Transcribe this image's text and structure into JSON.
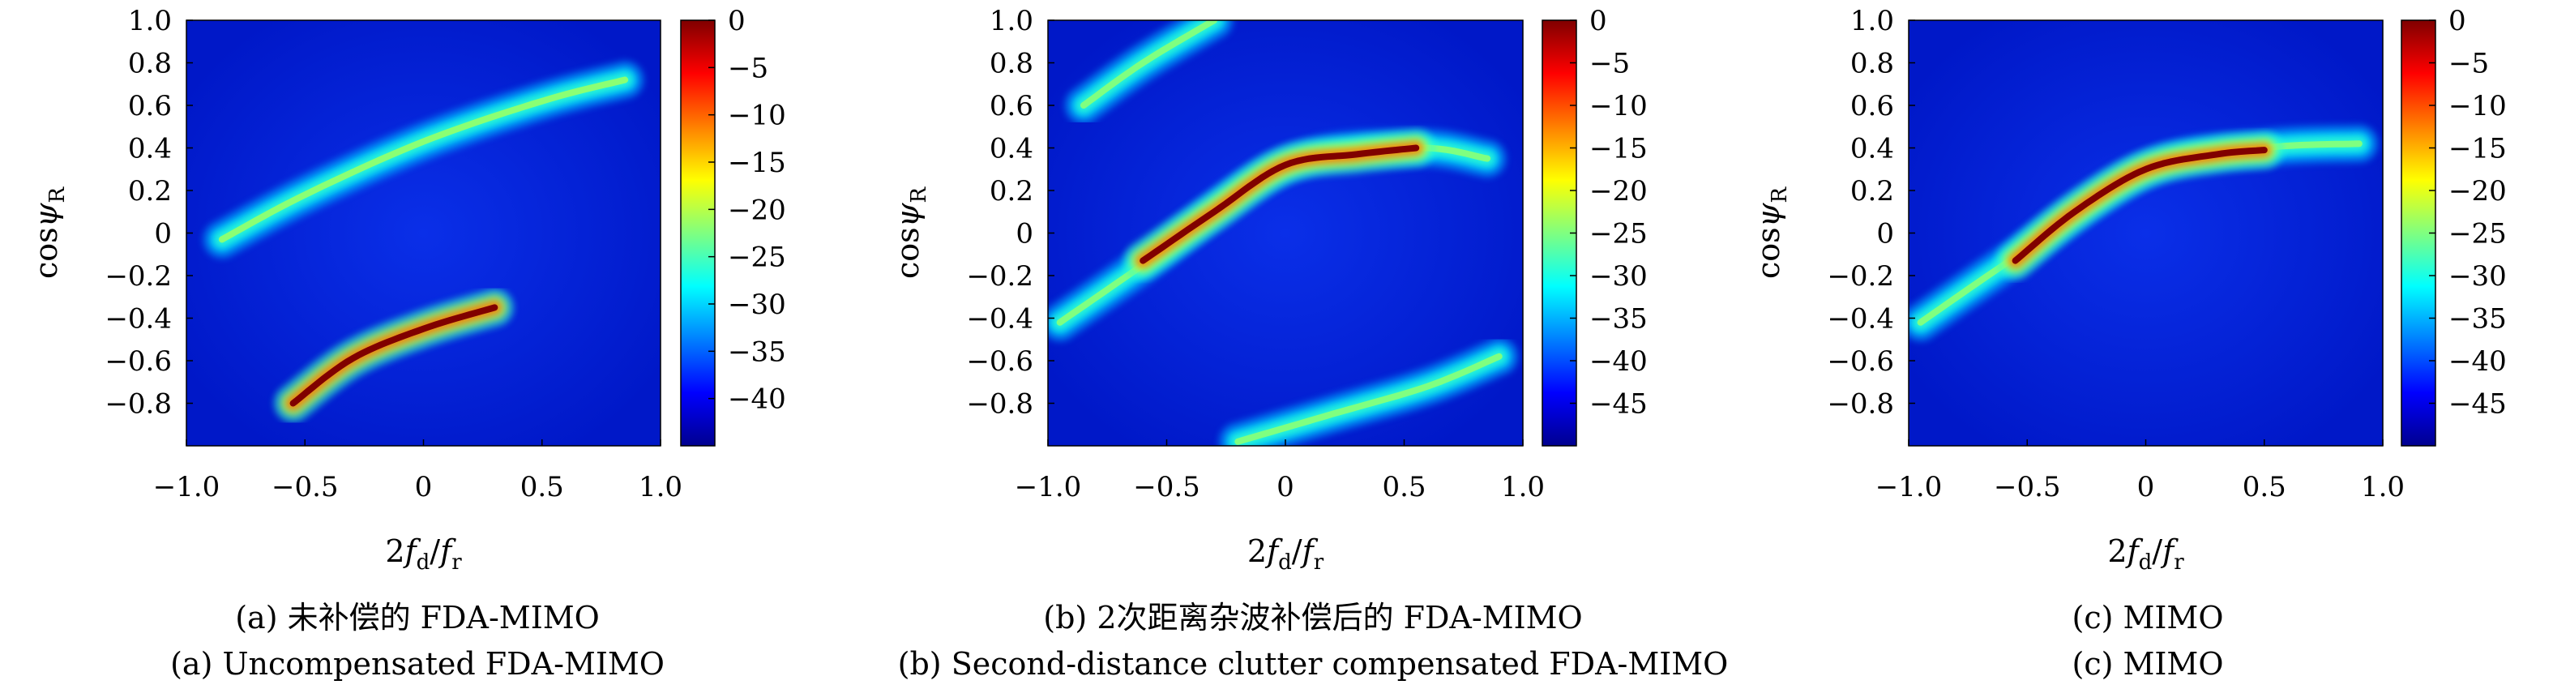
{
  "chart_data": [
    {
      "type": "heatmap",
      "caption_cn": "(a) 未补偿的 FDA-MIMO",
      "caption_en": "(a) Uncompensated FDA-MIMO",
      "xlabel": "2f_d/f_r",
      "ylabel": "cosψ_R",
      "xlim": [
        -1.0,
        1.0
      ],
      "ylim": [
        -1.0,
        1.0
      ],
      "xticks": [
        "-1.0",
        "-0.5",
        "0",
        "0.5",
        "1.0"
      ],
      "yticks": [
        "1.0",
        "0.8",
        "0.6",
        "0.4",
        "0.2",
        "0",
        "-0.2",
        "-0.4",
        "-0.6",
        "-0.8"
      ],
      "colorbar": {
        "min": -45,
        "max": 0,
        "ticks": [
          "0",
          "-5",
          "-10",
          "-15",
          "-20",
          "-25",
          "-30",
          "-35",
          "-40"
        ]
      },
      "colormap": "jet",
      "ridges": [
        {
          "x": [
            -0.85,
            -0.5,
            0,
            0.5,
            0.85
          ],
          "y": [
            -0.03,
            0.18,
            0.43,
            0.62,
            0.72
          ],
          "peak_db": -22
        },
        {
          "x": [
            -0.55,
            -0.3,
            0,
            0.3
          ],
          "y": [
            -0.8,
            -0.59,
            -0.45,
            -0.35
          ],
          "peak_db": 0
        }
      ]
    },
    {
      "type": "heatmap",
      "caption_cn": "(b) 2次距离杂波补偿后的 FDA-MIMO",
      "caption_en": "(b) Second-distance clutter compensated FDA-MIMO",
      "xlabel": "2f_d/f_r",
      "ylabel": "cosψ_R",
      "xlim": [
        -1.0,
        1.0
      ],
      "ylim": [
        -1.0,
        1.0
      ],
      "xticks": [
        "-1.0",
        "-0.5",
        "0",
        "0.5",
        "1.0"
      ],
      "yticks": [
        "1.0",
        "0.8",
        "0.6",
        "0.4",
        "0.2",
        "0",
        "-0.2",
        "-0.4",
        "-0.6",
        "-0.8"
      ],
      "colorbar": {
        "min": -50,
        "max": 0,
        "ticks": [
          "0",
          "-5",
          "-10",
          "-15",
          "-20",
          "-25",
          "-30",
          "-35",
          "-40",
          "-45"
        ]
      },
      "colormap": "jet",
      "ridges": [
        {
          "x": [
            -0.95,
            -0.6,
            0,
            0.55,
            0.85
          ],
          "y": [
            -0.42,
            -0.15,
            0.32,
            0.4,
            0.35
          ],
          "peak_db": -28
        },
        {
          "x": [
            -0.6,
            -0.3,
            0,
            0.3,
            0.55
          ],
          "y": [
            -0.13,
            0.1,
            0.32,
            0.37,
            0.4
          ],
          "peak_db": 0
        },
        {
          "x": [
            -0.85,
            -0.6,
            -0.3
          ],
          "y": [
            0.6,
            0.8,
            1.0
          ],
          "peak_db": -25
        },
        {
          "x": [
            -0.2,
            0.2,
            0.6,
            0.9
          ],
          "y": [
            -0.98,
            -0.85,
            -0.72,
            -0.58
          ],
          "peak_db": -25
        }
      ]
    },
    {
      "type": "heatmap",
      "caption_cn": "(c) MIMO",
      "caption_en": "(c) MIMO",
      "xlabel": "2f_d/f_r",
      "ylabel": "cosψ_R",
      "xlim": [
        -1.0,
        1.0
      ],
      "ylim": [
        -1.0,
        1.0
      ],
      "xticks": [
        "-1.0",
        "-0.5",
        "0",
        "0.5",
        "1.0"
      ],
      "yticks": [
        "1.0",
        "0.8",
        "0.6",
        "0.4",
        "0.2",
        "0",
        "-0.2",
        "-0.4",
        "-0.6",
        "-0.8"
      ],
      "colorbar": {
        "min": -50,
        "max": 0,
        "ticks": [
          "0",
          "-5",
          "-10",
          "-15",
          "-20",
          "-25",
          "-30",
          "-35",
          "-40",
          "-45"
        ]
      },
      "colormap": "jet",
      "ridges": [
        {
          "x": [
            -0.95,
            -0.6,
            0,
            0.5,
            0.9
          ],
          "y": [
            -0.42,
            -0.15,
            0.3,
            0.4,
            0.42
          ],
          "peak_db": -28
        },
        {
          "x": [
            -0.55,
            -0.3,
            0,
            0.3,
            0.5
          ],
          "y": [
            -0.13,
            0.1,
            0.3,
            0.37,
            0.39
          ],
          "peak_db": 0
        }
      ]
    }
  ]
}
